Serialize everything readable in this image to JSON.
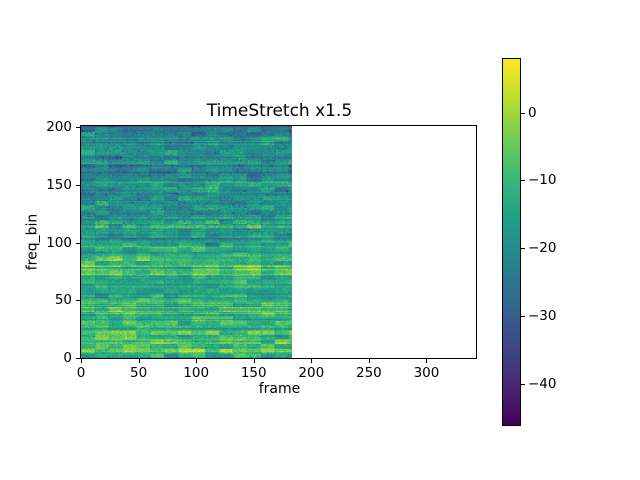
{
  "title": "TimeStretch x1.5",
  "axes": {
    "xlabel": "frame",
    "ylabel": "freq_bin",
    "xlim": [
      0,
      343
    ],
    "ylim": [
      0,
      201
    ],
    "xticks": [
      0,
      50,
      100,
      150,
      200,
      250,
      300
    ],
    "yticks": [
      0,
      50,
      100,
      150,
      200
    ]
  },
  "colorbar": {
    "colormap": "viridis",
    "vmin": -46.1,
    "vmax": 7.9,
    "ticks": [
      0,
      -10,
      -20,
      -30,
      -40
    ],
    "tick_labels": [
      "0",
      "−10",
      "−20",
      "−30",
      "−40"
    ]
  },
  "chart_data": {
    "type": "heatmap",
    "title": "TimeStretch x1.5",
    "xlabel": "frame",
    "ylabel": "freq_bin",
    "colormap": "viridis",
    "n_frames": 183,
    "n_bins": 201,
    "xlim": [
      0,
      343
    ],
    "ylim": [
      0,
      201
    ],
    "value_range_db": [
      -46.1,
      7.9
    ],
    "seed": 11,
    "row_profile_db": [
      [
        0,
        -14
      ],
      [
        3,
        -8
      ],
      [
        6,
        -3
      ],
      [
        9,
        -11
      ],
      [
        13,
        -6
      ],
      [
        17,
        -13
      ],
      [
        21,
        -7
      ],
      [
        26,
        -13
      ],
      [
        30,
        -7
      ],
      [
        34,
        -14
      ],
      [
        38,
        -8
      ],
      [
        44,
        -13
      ],
      [
        48,
        -10
      ],
      [
        55,
        -16
      ],
      [
        62,
        -12
      ],
      [
        68,
        -16
      ],
      [
        73,
        -8
      ],
      [
        78,
        -12
      ],
      [
        83,
        -9
      ],
      [
        90,
        -16
      ],
      [
        97,
        -13
      ],
      [
        105,
        -18
      ],
      [
        112,
        -15
      ],
      [
        120,
        -19
      ],
      [
        130,
        -17
      ],
      [
        140,
        -20
      ],
      [
        150,
        -18
      ],
      [
        160,
        -21
      ],
      [
        170,
        -19
      ],
      [
        180,
        -22
      ],
      [
        190,
        -20
      ],
      [
        200,
        -23
      ]
    ],
    "texture": {
      "row_jitter_db": 3.0,
      "block_w_frames": 12,
      "block_h_bins": 4,
      "block_jitter_db": 3.0,
      "pixel_noise_db": 2.2,
      "seam_drop_db": 2.0,
      "highband_speckle_threshold_bin": 110,
      "highband_speckle_prob": 0.05
    }
  }
}
